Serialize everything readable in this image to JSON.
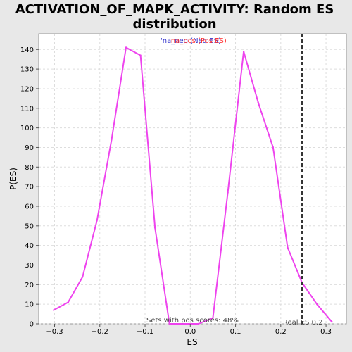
{
  "chart_data": {
    "type": "line",
    "title_line1": "ACTIVATION_OF_MAPK_ACTIVITY: Random ES",
    "title_line2": "distribution",
    "xlabel": "ES",
    "ylabel": "P(ES)",
    "xlim": [
      -0.335,
      0.345
    ],
    "ylim": [
      0,
      148
    ],
    "x_ticks": [
      -0.3,
      -0.2,
      -0.1,
      0.0,
      0.1,
      0.2,
      0.3
    ],
    "x_tick_labels": [
      "−0.3",
      "−0.2",
      "−0.1",
      "0.0",
      "0.1",
      "0.2",
      "0.3"
    ],
    "y_ticks": [
      0,
      10,
      20,
      30,
      40,
      50,
      60,
      70,
      80,
      90,
      100,
      110,
      120,
      130,
      140
    ],
    "y_tick_labels": [
      "0",
      "10",
      "20",
      "30",
      "40",
      "50",
      "60",
      "70",
      "80",
      "90",
      "100",
      "110",
      "120",
      "130",
      "140"
    ],
    "grid": true,
    "legend": {
      "placement": "top-center",
      "entries": [
        {
          "text": "'na_neg (Neg ES)",
          "color": "#3333cc"
        },
        {
          "text": "'na_pos (Pos ES)",
          "color": "#ff3333"
        }
      ]
    },
    "series": [
      {
        "color": "#ee44ee",
        "x": [
          -0.302,
          -0.27,
          -0.238,
          -0.206,
          -0.174,
          -0.142,
          -0.11,
          -0.078,
          -0.046,
          -0.014,
          0.018,
          0.05,
          0.083,
          0.118,
          0.15,
          0.183,
          0.215,
          0.247,
          0.28,
          0.313
        ],
        "y": [
          7,
          11,
          24,
          53,
          94,
          141,
          137,
          49,
          0,
          0,
          0,
          3,
          67,
          139,
          113,
          90,
          39,
          21,
          10,
          1
        ]
      }
    ],
    "vline": {
      "x": 0.247,
      "style": "dashed",
      "color": "#333333"
    },
    "annotations": {
      "pos_scores": "Sets with pos scores: 48%",
      "real_es": "Real ES 0.2"
    }
  }
}
